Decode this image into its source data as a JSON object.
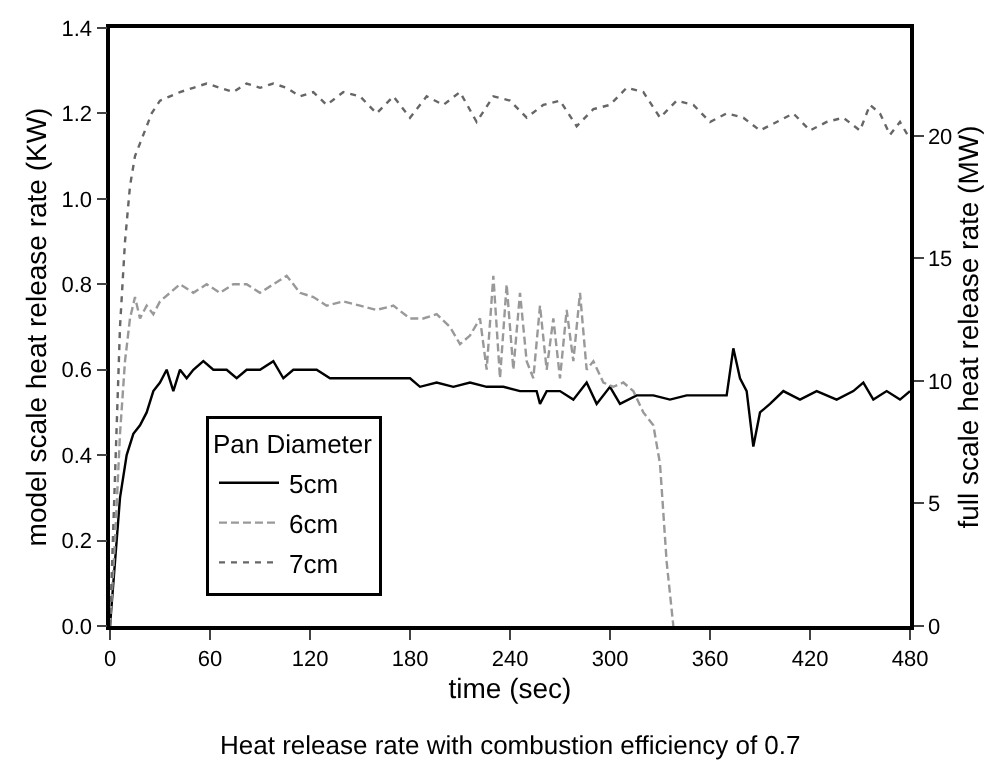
{
  "chart_data": {
    "type": "line",
    "xlabel": "time (sec)",
    "ylabel": "model scale heat release rate (KW)",
    "y2label": "full scale heat release rate (MW)",
    "annotations": [
      "Heat release rate with combustion efficiency of 0.7"
    ],
    "legend_title": "Pan Diameter",
    "legend": "bottom left",
    "xlim": [
      0,
      480
    ],
    "xticks": [
      0,
      60,
      120,
      180,
      240,
      300,
      360,
      420,
      480
    ],
    "ylim": [
      0,
      1.4
    ],
    "yticks": [
      {
        "value": 0,
        "label": "0.0"
      },
      {
        "value": 0.2,
        "label": "0.2"
      },
      {
        "value": 0.4,
        "label": "0.4"
      },
      {
        "value": 0.6,
        "label": "0.6"
      },
      {
        "value": 0.8,
        "label": "0.8"
      },
      {
        "value": 1.0,
        "label": "1.0"
      },
      {
        "value": 1.2,
        "label": "1.2"
      },
      {
        "value": 1.4,
        "label": "1.4"
      }
    ],
    "y2lim": [
      0,
      24.4
    ],
    "y2ticks": [
      0,
      5,
      10,
      15,
      20
    ],
    "series": [
      {
        "name": "5cm",
        "color": "#000000",
        "line_style": "solid",
        "x": [
          0,
          3,
          6,
          10,
          14,
          18,
          22,
          26,
          30,
          34,
          38,
          42,
          46,
          50,
          56,
          62,
          70,
          76,
          82,
          90,
          98,
          104,
          110,
          118,
          124,
          132,
          140,
          150,
          160,
          170,
          180,
          186,
          196,
          206,
          216,
          226,
          236,
          246,
          256,
          258,
          262,
          270,
          278,
          286,
          292,
          300,
          306,
          316,
          326,
          336,
          346,
          356,
          364,
          370,
          374,
          378,
          382,
          386,
          390,
          396,
          404,
          414,
          424,
          436,
          446,
          452,
          458,
          466,
          474,
          480
        ],
        "values": [
          0.0,
          0.15,
          0.3,
          0.4,
          0.45,
          0.47,
          0.5,
          0.55,
          0.57,
          0.6,
          0.55,
          0.6,
          0.58,
          0.6,
          0.62,
          0.6,
          0.6,
          0.58,
          0.6,
          0.6,
          0.62,
          0.58,
          0.6,
          0.6,
          0.6,
          0.58,
          0.58,
          0.58,
          0.58,
          0.58,
          0.58,
          0.56,
          0.57,
          0.56,
          0.57,
          0.56,
          0.56,
          0.55,
          0.55,
          0.52,
          0.55,
          0.55,
          0.53,
          0.57,
          0.52,
          0.56,
          0.52,
          0.54,
          0.54,
          0.53,
          0.54,
          0.54,
          0.54,
          0.54,
          0.65,
          0.58,
          0.55,
          0.42,
          0.5,
          0.52,
          0.55,
          0.53,
          0.55,
          0.53,
          0.55,
          0.57,
          0.53,
          0.55,
          0.53,
          0.55
        ]
      },
      {
        "name": "6cm",
        "color": "#999999",
        "line_style": "dashed",
        "x": [
          0,
          3,
          6,
          9,
          12,
          15,
          18,
          22,
          26,
          30,
          36,
          42,
          50,
          58,
          66,
          74,
          82,
          90,
          98,
          106,
          114,
          122,
          130,
          140,
          150,
          160,
          170,
          180,
          188,
          196,
          204,
          210,
          216,
          222,
          226,
          230,
          234,
          238,
          242,
          246,
          250,
          254,
          258,
          262,
          266,
          270,
          274,
          278,
          282,
          286,
          290,
          296,
          302,
          308,
          314,
          320,
          326,
          330,
          334,
          338
        ],
        "values": [
          0.0,
          0.2,
          0.45,
          0.62,
          0.72,
          0.77,
          0.72,
          0.75,
          0.73,
          0.76,
          0.78,
          0.8,
          0.78,
          0.8,
          0.78,
          0.8,
          0.8,
          0.78,
          0.8,
          0.82,
          0.78,
          0.77,
          0.75,
          0.76,
          0.75,
          0.74,
          0.75,
          0.72,
          0.72,
          0.73,
          0.7,
          0.66,
          0.68,
          0.72,
          0.6,
          0.82,
          0.58,
          0.8,
          0.6,
          0.78,
          0.62,
          0.58,
          0.75,
          0.6,
          0.72,
          0.58,
          0.74,
          0.62,
          0.78,
          0.6,
          0.62,
          0.57,
          0.56,
          0.57,
          0.55,
          0.5,
          0.47,
          0.38,
          0.15,
          0.0
        ]
      },
      {
        "name": "7cm",
        "color": "#666666",
        "line_style": "dotted",
        "x": [
          0,
          3,
          6,
          9,
          12,
          15,
          18,
          21,
          25,
          30,
          36,
          42,
          50,
          58,
          66,
          74,
          82,
          90,
          98,
          106,
          114,
          122,
          130,
          140,
          150,
          160,
          170,
          180,
          190,
          200,
          210,
          220,
          230,
          240,
          250,
          260,
          270,
          280,
          290,
          300,
          310,
          320,
          330,
          340,
          350,
          360,
          370,
          380,
          390,
          400,
          410,
          420,
          430,
          440,
          450,
          456,
          462,
          468,
          474,
          480
        ],
        "values": [
          0.0,
          0.35,
          0.7,
          0.9,
          1.03,
          1.1,
          1.13,
          1.16,
          1.2,
          1.23,
          1.24,
          1.25,
          1.26,
          1.27,
          1.26,
          1.25,
          1.27,
          1.26,
          1.27,
          1.26,
          1.24,
          1.25,
          1.22,
          1.25,
          1.24,
          1.2,
          1.24,
          1.19,
          1.24,
          1.22,
          1.25,
          1.18,
          1.24,
          1.23,
          1.19,
          1.22,
          1.23,
          1.17,
          1.21,
          1.22,
          1.26,
          1.25,
          1.19,
          1.23,
          1.22,
          1.18,
          1.2,
          1.19,
          1.16,
          1.18,
          1.2,
          1.16,
          1.18,
          1.19,
          1.16,
          1.22,
          1.2,
          1.15,
          1.18,
          1.14
        ]
      }
    ]
  }
}
